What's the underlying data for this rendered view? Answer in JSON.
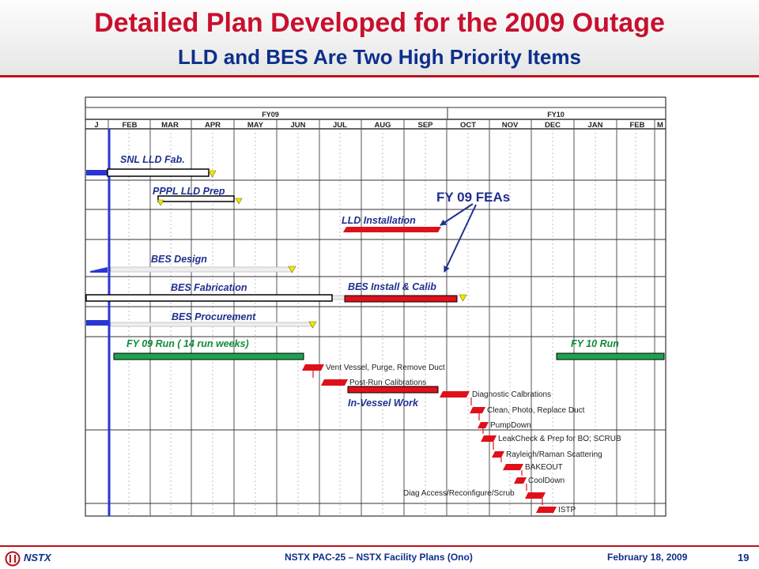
{
  "title": "Detailed Plan Developed for the 2009 Outage",
  "subtitle": "LLD and BES Are Two High Priority Items",
  "fiscal_years": [
    "FY09",
    "FY10"
  ],
  "months": [
    "J",
    "FEB",
    "MAR",
    "APR",
    "MAY",
    "JUN",
    "JUL",
    "AUG",
    "SEP",
    "OCT",
    "NOV",
    "DEC",
    "JAN",
    "FEB",
    "M"
  ],
  "tasks": {
    "snl_lld_fab": "SNL LLD Fab.",
    "pppl_lld_prep": "PPPL LLD Prep",
    "lld_installation": "LLD Installation",
    "bes_design": "BES Design",
    "bes_fabrication": "BES Fabrication",
    "bes_install_calib": "BES Install & Calib",
    "bes_procurement": "BES Procurement",
    "fy09_run": "FY 09 Run ( 14 run weeks)",
    "fy10_run": "FY 10 Run",
    "in_vessel_work": "In-Vessel Work"
  },
  "callout": "FY 09 FEAs",
  "outage_steps": [
    "Vent Vessel, Purge, Remove Duct",
    "Post-Run Calibrations",
    "Diagnostic Calbrations",
    "Clean, Photo, Replace Duct",
    "PumpDown",
    "LeakCheck & Prep for BO; SCRUB",
    "Rayleigh/Raman Scattering",
    "BAKEOUT",
    "CoolDown",
    "Diag Access/Reconfigure/Scrub",
    "ISTP"
  ],
  "colors": {
    "title": "#c8102e",
    "subtitle": "#0d2f8c",
    "task_label": "#1f2f8f",
    "lld_bes_bar": "#e0101a",
    "run_bar": "#1fa050",
    "milestone": "#f2e600",
    "today_line": "#2a36d4"
  },
  "footer": {
    "org": "NSTX",
    "center": "NSTX PAC-25 – NSTX Facility Plans (Ono)",
    "date": "February 18, 2009",
    "page": "19"
  }
}
